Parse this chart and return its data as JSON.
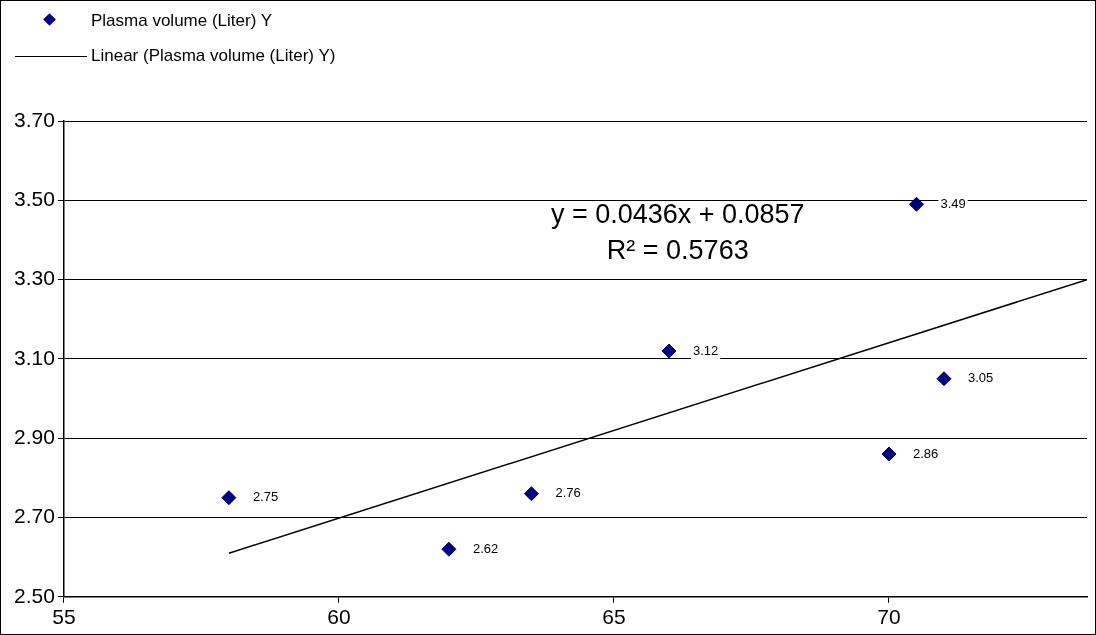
{
  "chart_data": {
    "type": "scatter",
    "annotations": [
      "y = 0.0436x + 0.0857",
      "R² = 0.5763"
    ],
    "xlim": [
      55,
      73.6
    ],
    "xticks": [
      55,
      60,
      65,
      70
    ],
    "ylim": [
      2.5,
      3.7
    ],
    "yticks": [
      {
        "value": 2.5,
        "label": "2.50"
      },
      {
        "value": 2.7,
        "label": "2.70"
      },
      {
        "value": 2.9,
        "label": "2.90"
      },
      {
        "value": 3.1,
        "label": "3.10"
      },
      {
        "value": 3.3,
        "label": "3.30"
      },
      {
        "value": 3.5,
        "label": "3.50"
      },
      {
        "value": 3.7,
        "label": "3.70"
      }
    ],
    "grid": "y",
    "legend": "top left",
    "marker": "diamond",
    "series": [
      {
        "name": "Plasma volume (Liter) Y",
        "color": "#000080",
        "x": [
          58,
          62,
          63.5,
          66,
          70,
          70.5,
          71
        ],
        "values": [
          2.75,
          2.62,
          2.76,
          3.12,
          2.86,
          3.49,
          3.05
        ],
        "value_labels": [
          "2.75",
          "2.62",
          "2.76",
          "3.12",
          "2.86",
          "3.49",
          "3.05"
        ]
      },
      {
        "name": "Linear (Plasma volume (Liter) Y)",
        "type": "line",
        "color": "#000000",
        "x": [
          58,
          73.6
        ],
        "values": [
          2.61,
          3.3
        ],
        "marker": "none",
        "line_style": "solid"
      }
    ]
  }
}
